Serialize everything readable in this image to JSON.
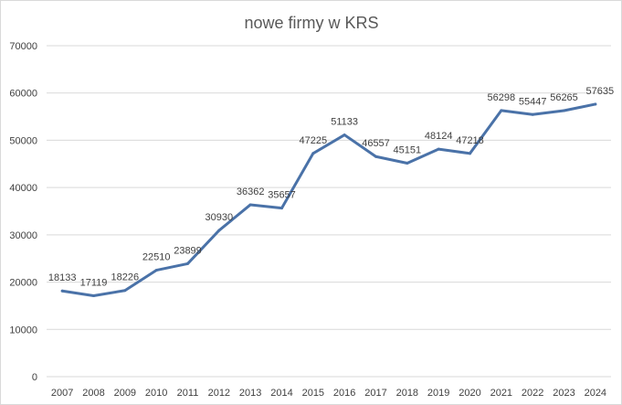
{
  "chart_data": {
    "type": "line",
    "title": "nowe firmy w KRS",
    "xlabel": "",
    "ylabel": "",
    "categories": [
      "2007",
      "2008",
      "2009",
      "2010",
      "2011",
      "2012",
      "2013",
      "2014",
      "2015",
      "2016",
      "2017",
      "2018",
      "2019",
      "2020",
      "2021",
      "2022",
      "2023",
      "2024"
    ],
    "series": [
      {
        "values": [
          18133,
          17119,
          18226,
          22510,
          23899,
          30930,
          36362,
          35657,
          47225,
          51133,
          46557,
          45151,
          48124,
          47218,
          56298,
          55447,
          56265,
          57635
        ]
      }
    ],
    "ylim": [
      0,
      70000
    ],
    "yticks": [
      "0",
      "10000",
      "20000",
      "30000",
      "40000",
      "50000",
      "60000",
      "70000"
    ],
    "grid": true,
    "legend": "none",
    "colors": {
      "line": "#4a72a8",
      "grid": "#d9d9d9",
      "text": "#404040",
      "title": "#595959"
    }
  }
}
